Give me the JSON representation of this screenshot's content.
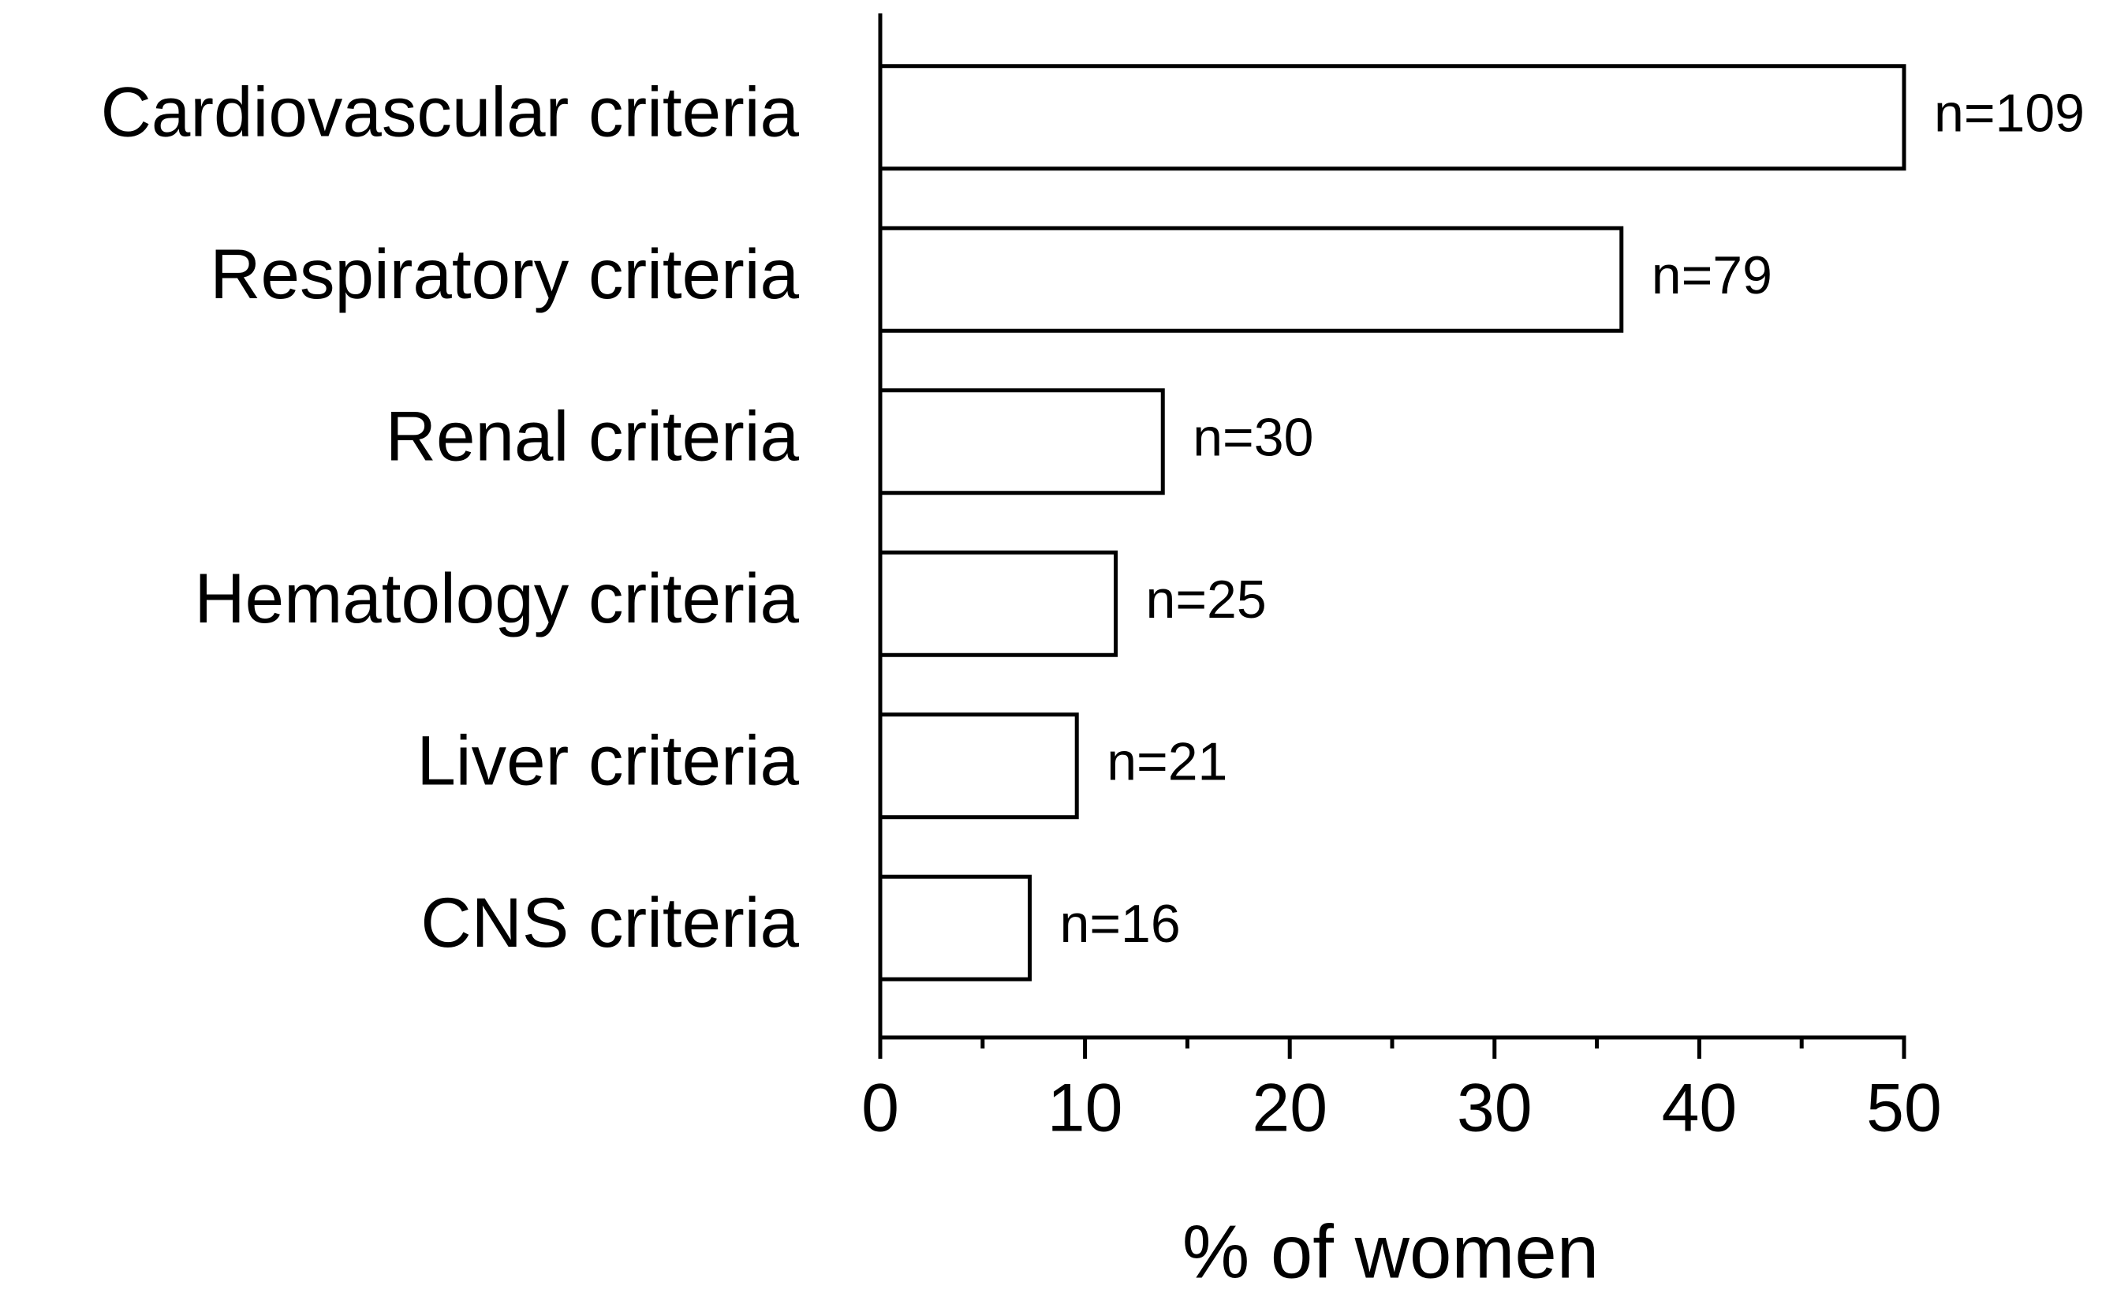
{
  "chart_data": {
    "type": "hbar",
    "categories": [
      "Cardiovascular criteria",
      "Respiratory criteria",
      "Renal criteria",
      "Hematology criteria",
      "Liver criteria",
      "CNS criteria"
    ],
    "values": [
      50,
      36.2,
      13.8,
      11.5,
      9.6,
      7.3
    ],
    "bar_labels": [
      "n=109",
      "n=79",
      "n=30",
      "n=25",
      "n=21",
      "n=16"
    ],
    "color": "#ffffff",
    "edge_color": "#000000",
    "x_label": "% of women",
    "xlim": [
      0,
      50
    ],
    "xticks": [
      0,
      10,
      20,
      30,
      40,
      50
    ],
    "minor_xticks": [
      5,
      15,
      25,
      35,
      45
    ],
    "grid": false
  }
}
